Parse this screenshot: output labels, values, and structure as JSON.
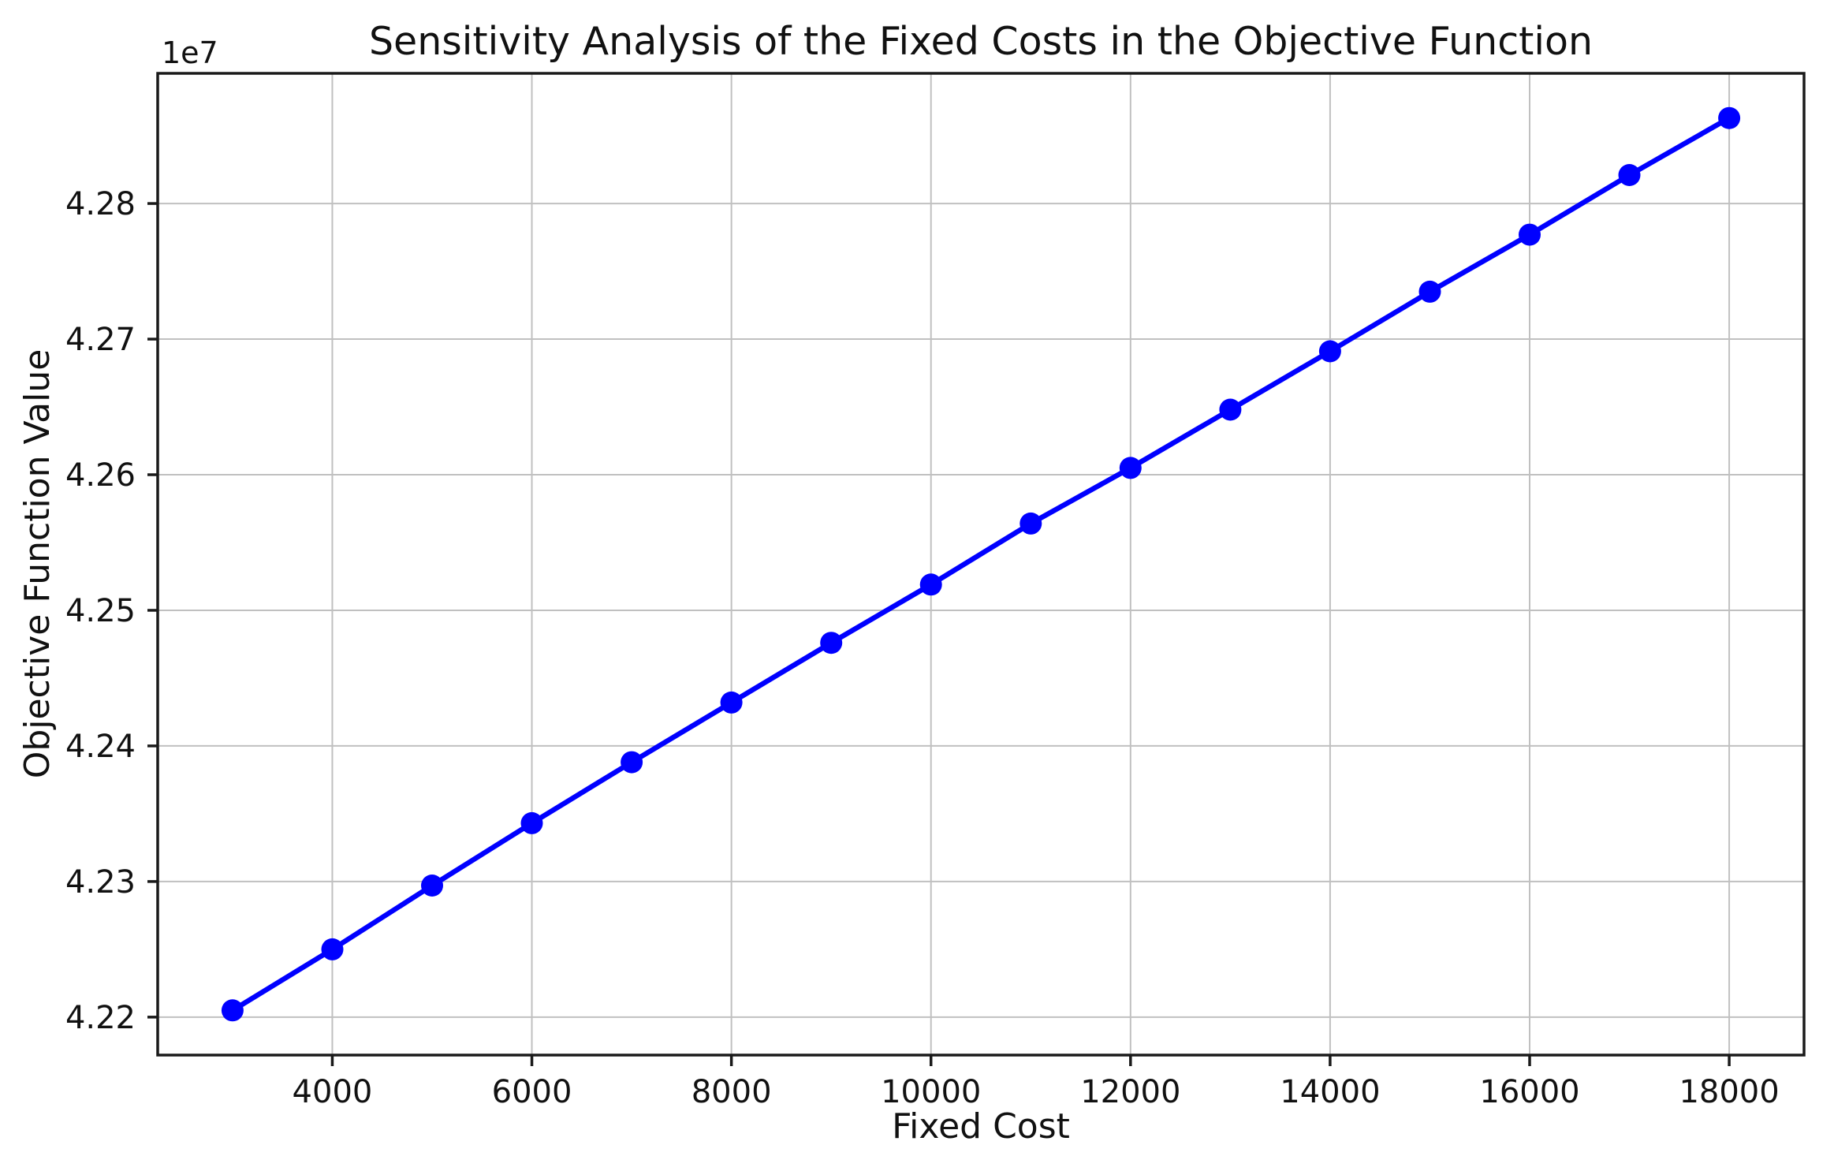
{
  "chart_data": {
    "type": "line",
    "title": "Sensitivity Analysis of the Fixed Costs in the Objective Function",
    "xlabel": "Fixed Cost",
    "ylabel": "Objective Function Value",
    "offset_text": "1e7",
    "x": [
      3000,
      4000,
      5000,
      6000,
      7000,
      8000,
      9000,
      10000,
      11000,
      12000,
      13000,
      14000,
      15000,
      16000,
      17000,
      18000
    ],
    "y": [
      42205000,
      42250000,
      42297000,
      42343000,
      42388000,
      42432000,
      42476000,
      42519000,
      42564000,
      42605000,
      42648000,
      42691000,
      42735000,
      42777000,
      42821000,
      42863000
    ],
    "xticks": [
      4000,
      6000,
      8000,
      10000,
      12000,
      14000,
      16000,
      18000
    ],
    "xtick_labels": [
      "4000",
      "6000",
      "8000",
      "10000",
      "12000",
      "14000",
      "16000",
      "18000"
    ],
    "yticks": [
      42200000,
      42300000,
      42400000,
      42500000,
      42600000,
      42700000,
      42800000
    ],
    "ytick_labels": [
      "4.22",
      "4.23",
      "4.24",
      "4.25",
      "4.26",
      "4.27",
      "4.28"
    ],
    "xlim": [
      2250,
      18750
    ],
    "ylim": [
      42172000,
      42896000
    ],
    "grid": true,
    "legend_position": "none",
    "line_color": "#0000ff",
    "marker_color": "#0000ff",
    "marker_shape": "circle",
    "grid_color": "#c0c0c0",
    "spine_color": "#1a1a1a",
    "tick_color": "#1a1a1a"
  }
}
